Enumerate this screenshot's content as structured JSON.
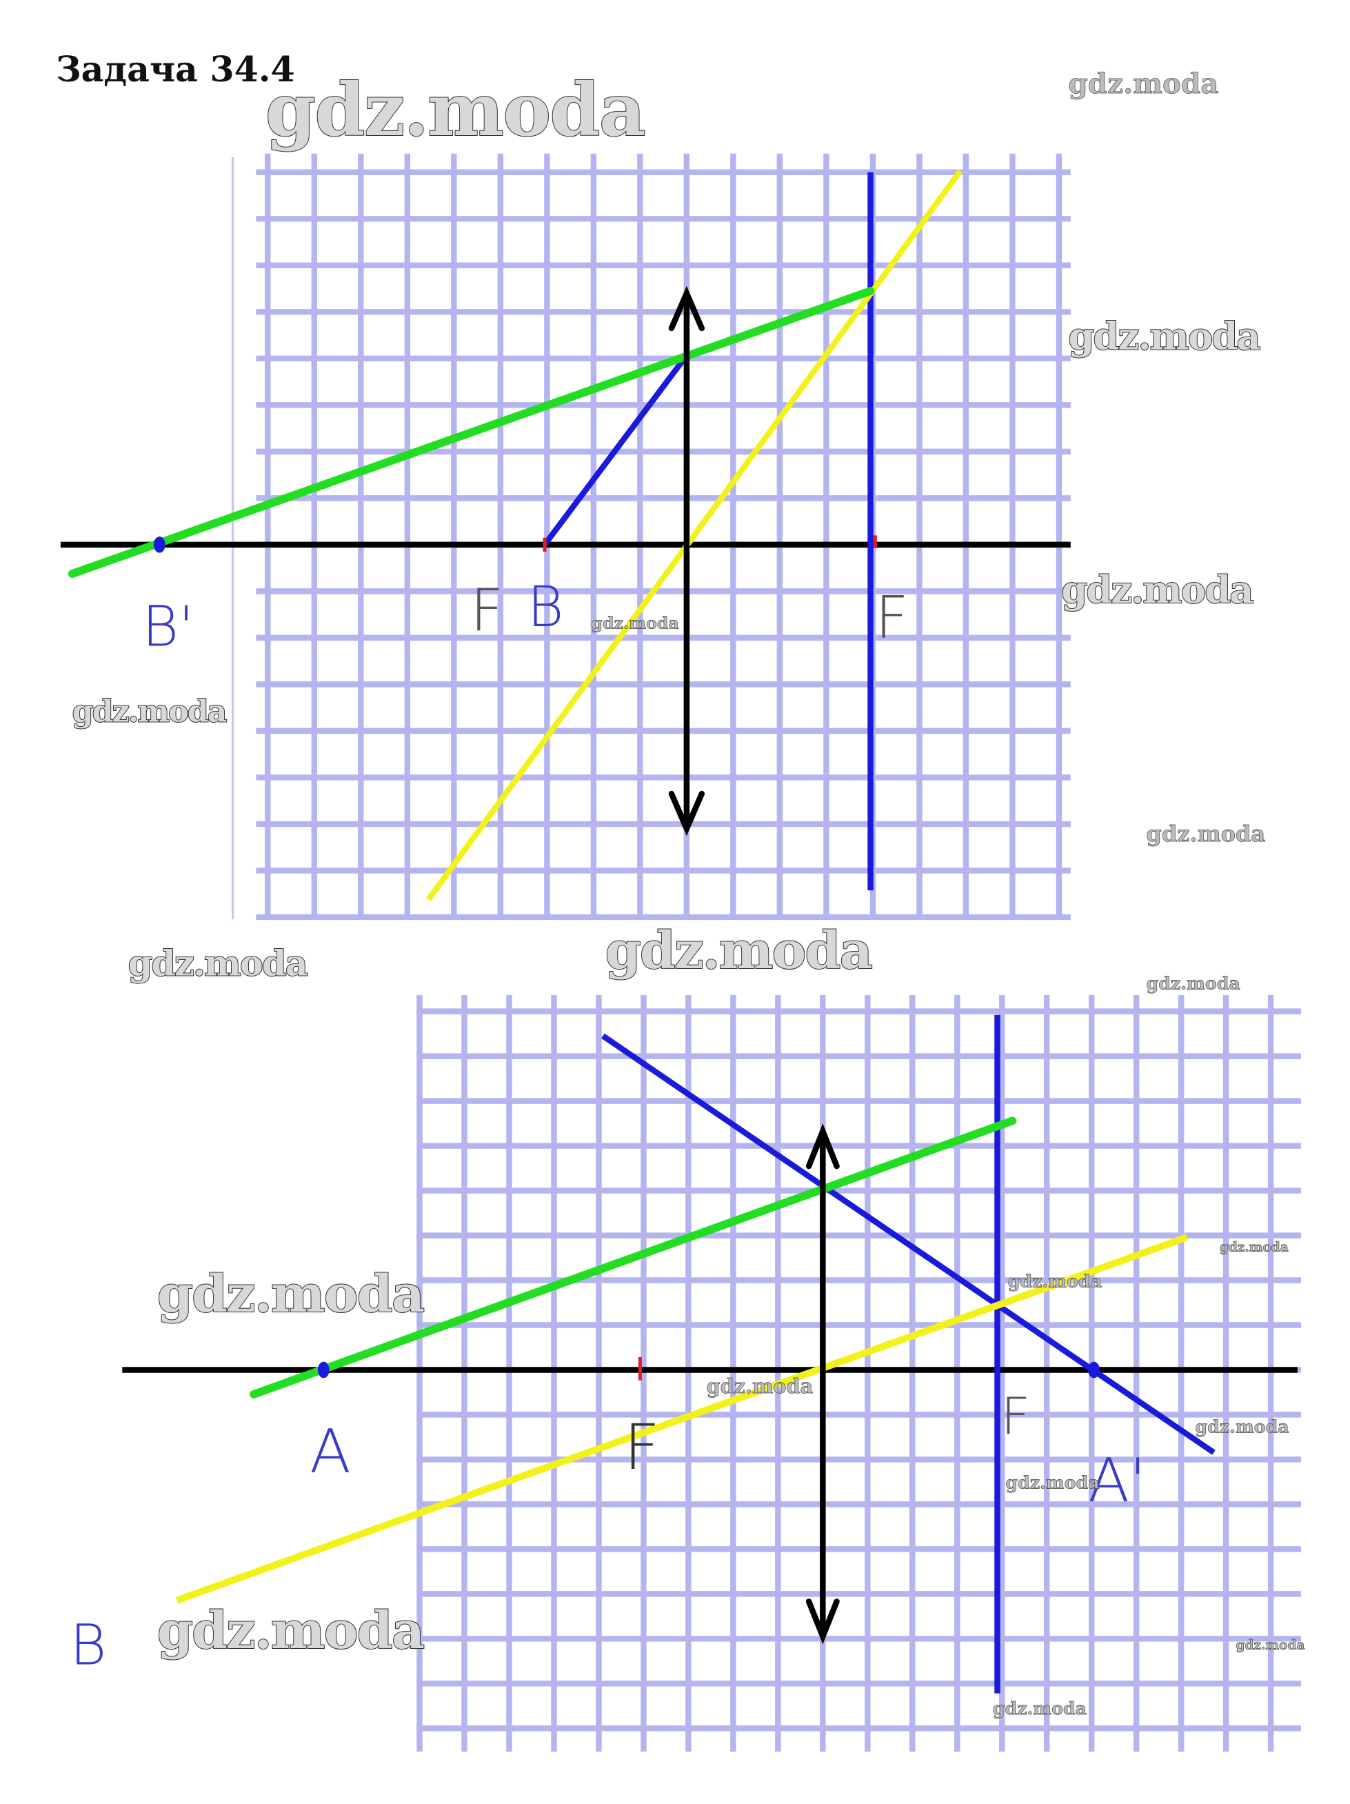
{
  "title": "Задача 34.4",
  "colors": {
    "grid": "#b4b4f0",
    "axis": "#000000",
    "ray_blue": "#1a1adc",
    "ray_green": "#22dd22",
    "ray_yellow": "#f2f21a",
    "focus_mark": "#e02020",
    "label_blue": "#3a3ac8",
    "label_gray": "#555555"
  },
  "diagram_top": {
    "labels": {
      "image_point": "B'",
      "focus_left": "F",
      "object_point": "B",
      "focus_right": "F"
    }
  },
  "diagram_bottom": {
    "labels": {
      "object_point": "A",
      "focus_left": "F",
      "focus_right": "F",
      "image_point": "A'",
      "ray_label": "B"
    }
  },
  "watermark": "gdz.moda"
}
